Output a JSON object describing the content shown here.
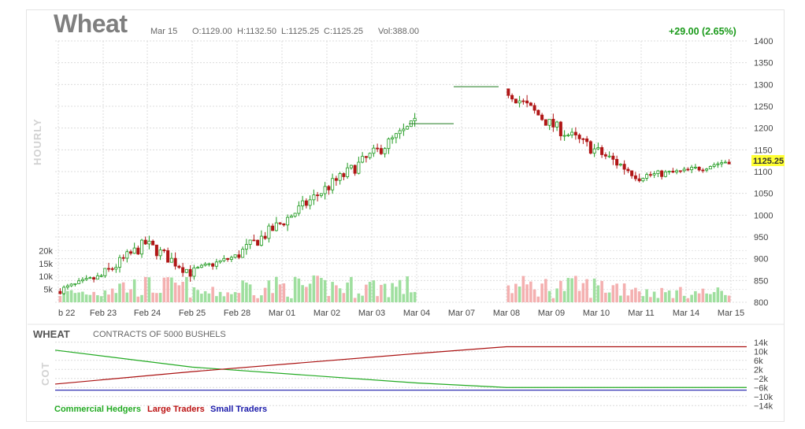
{
  "header": {
    "title": "Wheat",
    "date": "Mar 15",
    "open": "O:1129.00",
    "high": "H:1132.50",
    "low": "L:1125.25",
    "close": "C:1125.25",
    "volume": "Vol:388.00",
    "change": "+29.00 (2.65%)"
  },
  "price_panel": {
    "interval_label": "HOURLY",
    "last_price_tag": "1125.25"
  },
  "cot_panel": {
    "title": "WHEAT",
    "subtitle": "CONTRACTS OF 5000 BUSHELS",
    "side_label": "COT"
  },
  "colors": {
    "up": "#1e9a1e",
    "down": "#b01616",
    "volume_up": "#9fdf9f",
    "volume_down": "#f4b0b0",
    "commercial": "#22aa22",
    "large": "#aa1111",
    "small": "#1a1aaa",
    "last_tag": "#ffff33"
  },
  "chart_data": [
    {
      "type": "candlestick",
      "title": "Wheat",
      "interval": "HOURLY",
      "x_tick_labels": [
        "b 22",
        "Feb 23",
        "Feb 24",
        "Feb 25",
        "Feb 28",
        "Mar 01",
        "Mar 02",
        "Mar 03",
        "Mar 04",
        "Mar 07",
        "Mar 08",
        "Mar 09",
        "Mar 10",
        "Mar 11",
        "Mar 14",
        "Mar 15"
      ],
      "y_ticks": [
        800,
        850,
        900,
        950,
        1000,
        1050,
        1100,
        1150,
        1200,
        1250,
        1300,
        1350,
        1400
      ],
      "ylim": [
        800,
        1400
      ],
      "volume_ticks": [
        "5k",
        "10k",
        "15k",
        "20k"
      ],
      "volume_ylim": [
        0,
        25000
      ],
      "last_price": 1125.25,
      "grid": true,
      "approx_close_path": [
        {
          "date": "Feb 22",
          "close": 825
        },
        {
          "date": "Feb 23",
          "close": 860
        },
        {
          "date": "Feb 24",
          "close": 935
        },
        {
          "date": "Feb 25",
          "close": 870
        },
        {
          "date": "Feb 28",
          "close": 905
        },
        {
          "date": "Mar 01",
          "close": 980
        },
        {
          "date": "Mar 02",
          "close": 1060
        },
        {
          "date": "Mar 03",
          "close": 1135
        },
        {
          "date": "Mar 04",
          "close": 1210
        },
        {
          "date": "Mar 07",
          "close": 1295
        },
        {
          "date": "Mar 08",
          "close": 1290
        },
        {
          "date": "Mar 09",
          "close": 1210
        },
        {
          "date": "Mar 10",
          "close": 1150
        },
        {
          "date": "Mar 11",
          "close": 1090
        },
        {
          "date": "Mar 14",
          "close": 1100
        },
        {
          "date": "Mar 15",
          "close": 1125.25
        }
      ]
    },
    {
      "type": "line",
      "title": "WHEAT",
      "subtitle": "CONTRACTS OF 5000 BUSHELS",
      "y_tick_labels": [
        "14k",
        "10k",
        "6k",
        "2k",
        "−2k",
        "−6k",
        "−10k",
        "−14k"
      ],
      "ylim": [
        -16000,
        16000
      ],
      "series": [
        {
          "name": "Commercial Hedgers",
          "points": [
            {
              "date": "Feb 22",
              "value": 10500
            },
            {
              "date": "Feb 25",
              "value": 3000
            },
            {
              "date": "Mar 04",
              "value": -4000
            },
            {
              "date": "Mar 08",
              "value": -6000
            },
            {
              "date": "Mar 15",
              "value": -6000
            }
          ]
        },
        {
          "name": "Large Traders",
          "points": [
            {
              "date": "Feb 22",
              "value": -4500
            },
            {
              "date": "Feb 25",
              "value": 1000
            },
            {
              "date": "Mar 04",
              "value": 9000
            },
            {
              "date": "Mar 08",
              "value": 12000
            },
            {
              "date": "Mar 15",
              "value": 12000
            }
          ]
        },
        {
          "name": "Small Traders",
          "points": [
            {
              "date": "Feb 22",
              "value": -7200
            },
            {
              "date": "Mar 15",
              "value": -7200
            }
          ]
        }
      ]
    }
  ]
}
